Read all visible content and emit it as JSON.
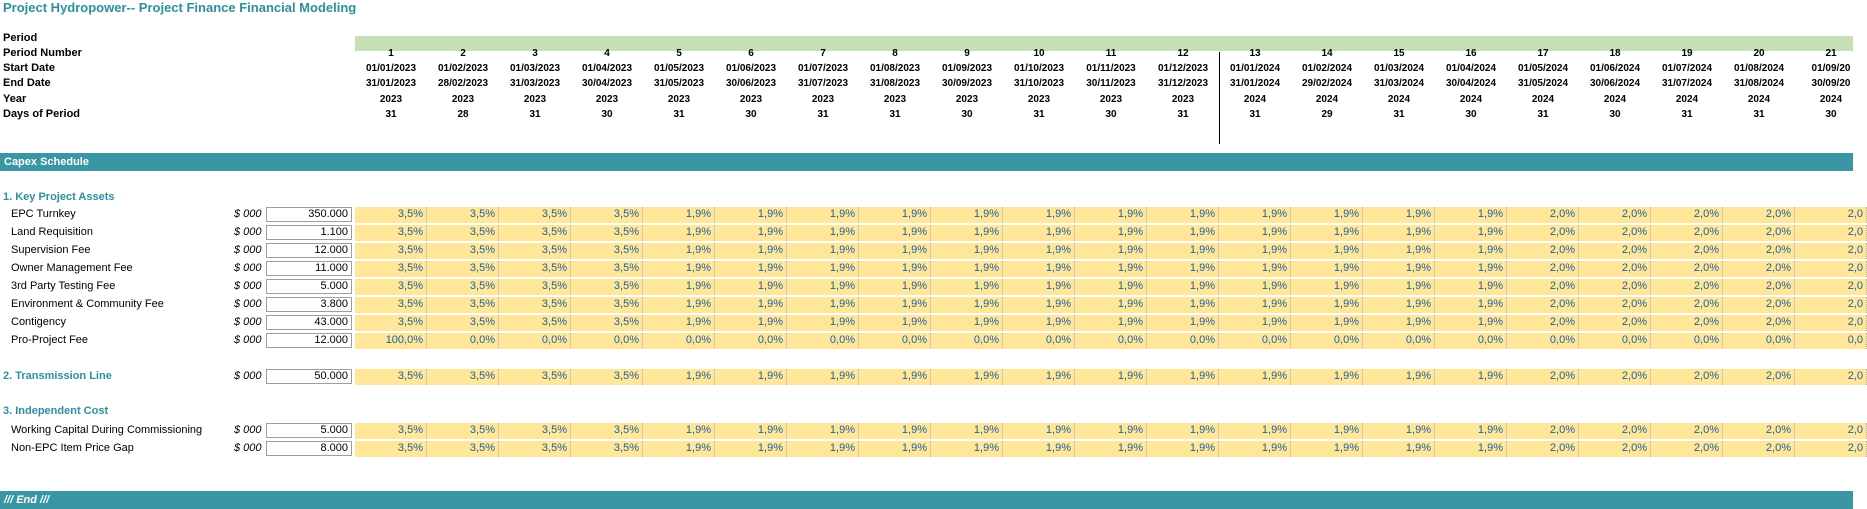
{
  "title": "Project Hydropower-- Project Finance Financial Modeling",
  "header_labels": {
    "period": "Period",
    "period_number": "Period Number",
    "start_date": "Start Date",
    "end_date": "End Date",
    "year": "Year",
    "days": "Days of Period"
  },
  "period_numbers": [
    "1",
    "2",
    "3",
    "4",
    "5",
    "6",
    "7",
    "8",
    "9",
    "10",
    "11",
    "12",
    "13",
    "14",
    "15",
    "16",
    "17",
    "18",
    "19",
    "20",
    "21"
  ],
  "start_dates": [
    "01/01/2023",
    "01/02/2023",
    "01/03/2023",
    "01/04/2023",
    "01/05/2023",
    "01/06/2023",
    "01/07/2023",
    "01/08/2023",
    "01/09/2023",
    "01/10/2023",
    "01/11/2023",
    "01/12/2023",
    "01/01/2024",
    "01/02/2024",
    "01/03/2024",
    "01/04/2024",
    "01/05/2024",
    "01/06/2024",
    "01/07/2024",
    "01/08/2024",
    "01/09/20"
  ],
  "end_dates": [
    "31/01/2023",
    "28/02/2023",
    "31/03/2023",
    "30/04/2023",
    "31/05/2023",
    "30/06/2023",
    "31/07/2023",
    "31/08/2023",
    "30/09/2023",
    "31/10/2023",
    "30/11/2023",
    "31/12/2023",
    "31/01/2024",
    "29/02/2024",
    "31/03/2024",
    "30/04/2024",
    "31/05/2024",
    "30/06/2024",
    "31/07/2024",
    "31/08/2024",
    "30/09/20"
  ],
  "years": [
    "2023",
    "2023",
    "2023",
    "2023",
    "2023",
    "2023",
    "2023",
    "2023",
    "2023",
    "2023",
    "2023",
    "2023",
    "2024",
    "2024",
    "2024",
    "2024",
    "2024",
    "2024",
    "2024",
    "2024",
    "2024"
  ],
  "days": [
    "31",
    "28",
    "31",
    "30",
    "31",
    "30",
    "31",
    "31",
    "30",
    "31",
    "30",
    "31",
    "31",
    "29",
    "31",
    "30",
    "31",
    "30",
    "31",
    "31",
    "30"
  ],
  "band_capex": "Capex Schedule",
  "band_end": "/// End ///",
  "sections": {
    "key_assets": "1. Key Project Assets",
    "independent": "3. Independent Cost"
  },
  "colors": {
    "accent": "#3a95a5",
    "title_text": "#2e8ea0",
    "period_bar": "#c6e0b4",
    "input_cell": "#ffe699",
    "value_text": "#1f5f9a"
  },
  "std_pct": [
    "3,5%",
    "3,5%",
    "3,5%",
    "3,5%",
    "1,9%",
    "1,9%",
    "1,9%",
    "1,9%",
    "1,9%",
    "1,9%",
    "1,9%",
    "1,9%",
    "1,9%",
    "1,9%",
    "1,9%",
    "1,9%",
    "2,0%",
    "2,0%",
    "2,0%",
    "2,0%",
    "2,0"
  ],
  "rows": [
    {
      "label": "EPC Turnkey",
      "unit": "$ 000",
      "value": "350.000",
      "pct": "std"
    },
    {
      "label": "Land Requisition",
      "unit": "$ 000",
      "value": "1.100",
      "pct": "std"
    },
    {
      "label": "Supervision Fee",
      "unit": "$ 000",
      "value": "12.000",
      "pct": "std"
    },
    {
      "label": "Owner Management Fee",
      "unit": "$ 000",
      "value": "11.000",
      "pct": "std"
    },
    {
      "label": "3rd Party Testing Fee",
      "unit": "$ 000",
      "value": "5.000",
      "pct": "std"
    },
    {
      "label": "Environment & Community Fee",
      "unit": "$ 000",
      "value": "3.800",
      "pct": "std"
    },
    {
      "label": "Contigency",
      "unit": "$ 000",
      "value": "43.000",
      "pct": "std"
    },
    {
      "label": "Pro-Project Fee",
      "unit": "$ 000",
      "value": "12.000",
      "pct": [
        "100,0%",
        "0,0%",
        "0,0%",
        "0,0%",
        "0,0%",
        "0,0%",
        "0,0%",
        "0,0%",
        "0,0%",
        "0,0%",
        "0,0%",
        "0,0%",
        "0,0%",
        "0,0%",
        "0,0%",
        "0,0%",
        "0,0%",
        "0,0%",
        "0,0%",
        "0,0%",
        "0,0"
      ]
    },
    {
      "label": "2. Transmission Line",
      "unit": "$ 000",
      "value": "50.000",
      "pct": "std",
      "section": true
    },
    {
      "label": "Working Capital During Commissioning",
      "unit": "$ 000",
      "value": "5.000",
      "pct": "std"
    },
    {
      "label": "Non-EPC Item Price Gap",
      "unit": "$ 000",
      "value": "8.000",
      "pct": "std"
    }
  ]
}
